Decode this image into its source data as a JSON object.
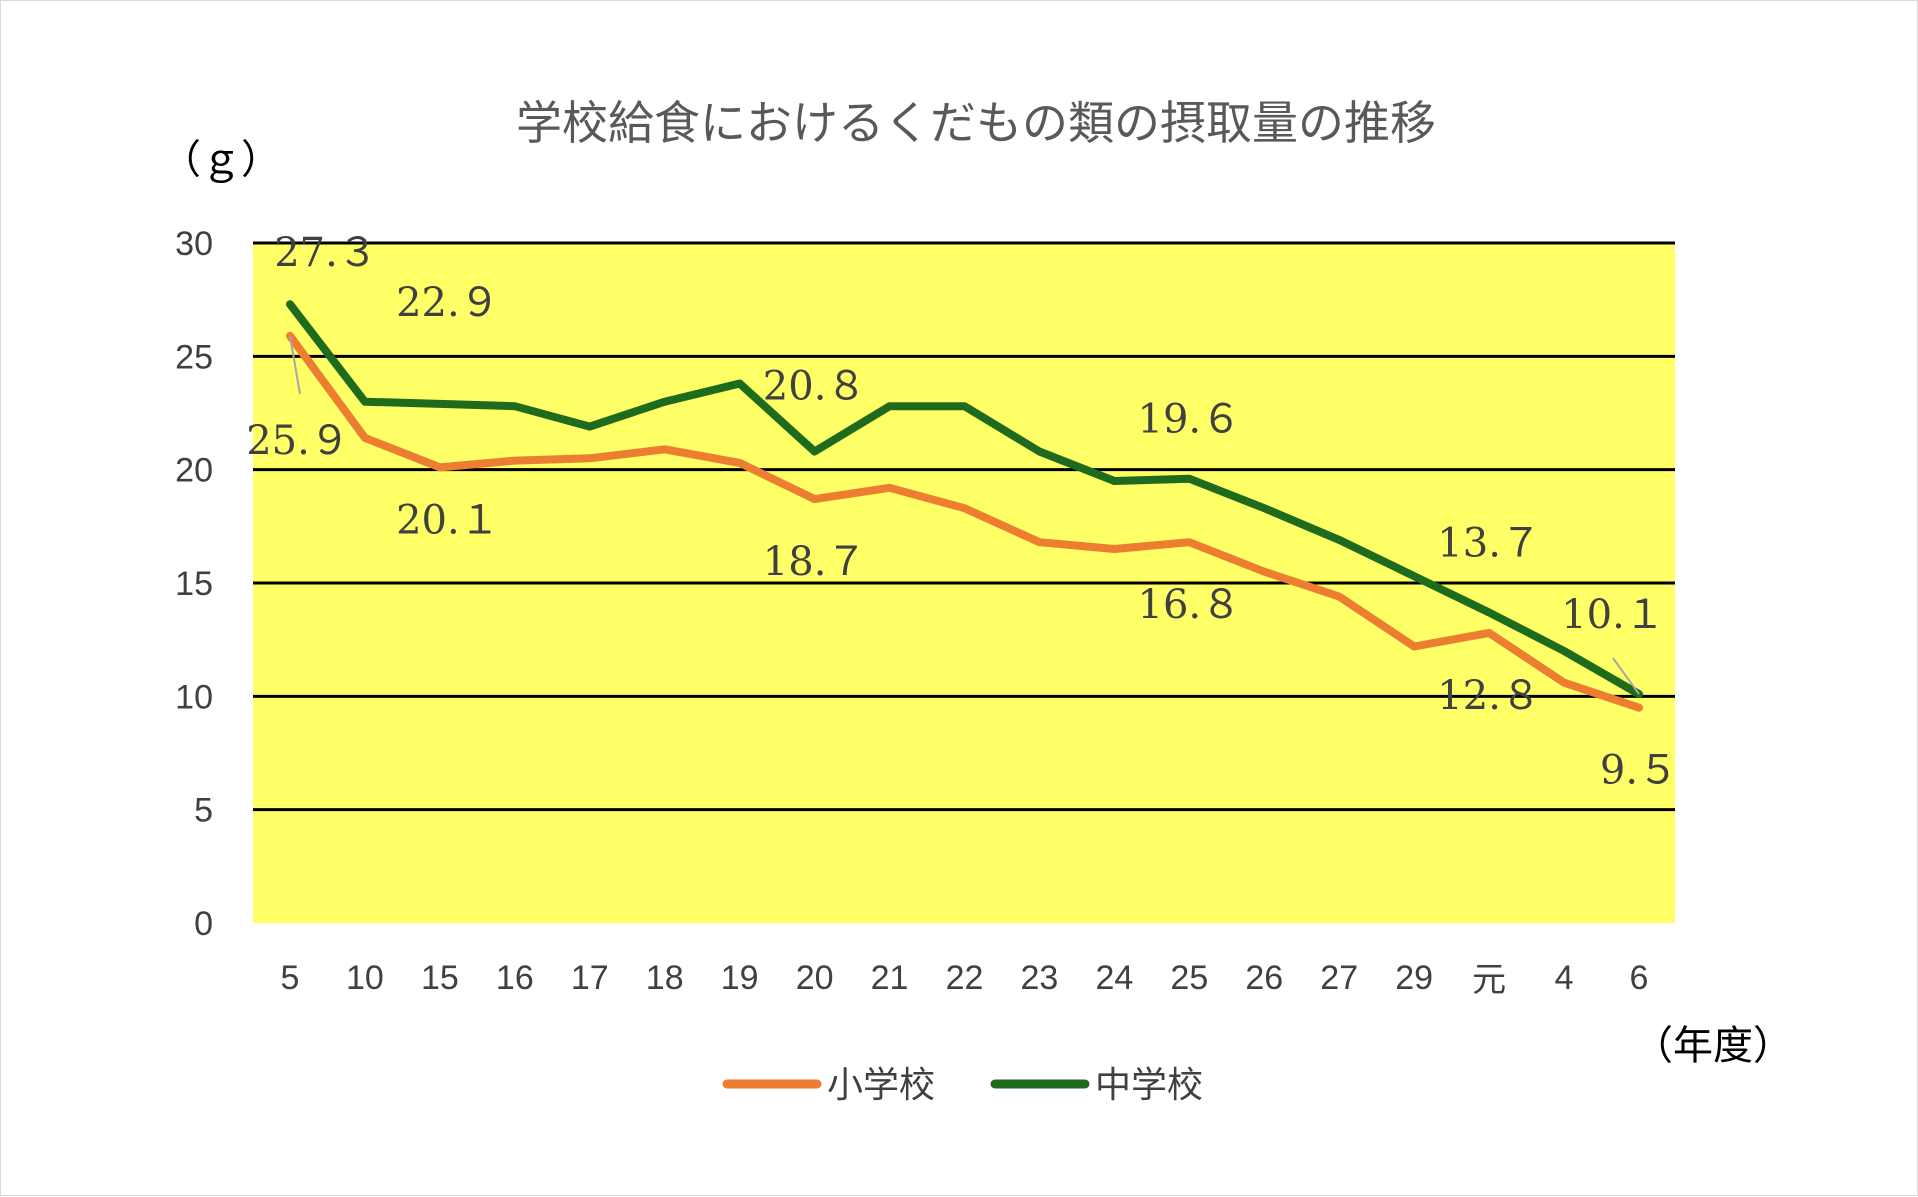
{
  "chart_data": {
    "type": "line",
    "title": "学校給食におけるくだもの類の摂取量の推移",
    "ylabel": "（ｇ）",
    "xlabel": "（年度）",
    "ylim": [
      0,
      30
    ],
    "yticks": [
      0,
      5,
      10,
      15,
      20,
      25,
      30
    ],
    "grid": true,
    "background_color": "#ffff66",
    "categories": [
      "5",
      "10",
      "15",
      "16",
      "17",
      "18",
      "19",
      "20",
      "21",
      "22",
      "23",
      "24",
      "25",
      "26",
      "27",
      "29",
      "元",
      "4",
      "6"
    ],
    "series": [
      {
        "name": "小学校",
        "color": "#ed7d31",
        "values": [
          25.9,
          21.4,
          20.1,
          20.4,
          20.5,
          20.9,
          20.3,
          18.7,
          19.2,
          18.3,
          16.8,
          16.5,
          16.8,
          15.5,
          14.4,
          12.2,
          12.8,
          10.6,
          9.5
        ]
      },
      {
        "name": "中学校",
        "color": "#1e6b1e",
        "values": [
          27.3,
          23.0,
          22.9,
          22.8,
          21.9,
          23.0,
          23.8,
          20.8,
          22.8,
          22.8,
          20.8,
          19.5,
          19.6,
          18.3,
          16.9,
          15.3,
          13.7,
          12.0,
          10.1
        ]
      }
    ],
    "data_labels": [
      {
        "series": "中学校",
        "index": 0,
        "text": "27.３"
      },
      {
        "series": "小学校",
        "index": 0,
        "text": "25.９"
      },
      {
        "series": "中学校",
        "index": 2,
        "text": "22.９"
      },
      {
        "series": "小学校",
        "index": 2,
        "text": "20.１"
      },
      {
        "series": "中学校",
        "index": 7,
        "text": "20.８"
      },
      {
        "series": "小学校",
        "index": 7,
        "text": "18.７"
      },
      {
        "series": "中学校",
        "index": 12,
        "text": "19.６"
      },
      {
        "series": "小学校",
        "index": 12,
        "text": "16.８"
      },
      {
        "series": "中学校",
        "index": 16,
        "text": "13.７"
      },
      {
        "series": "小学校",
        "index": 16,
        "text": "12.８"
      },
      {
        "series": "中学校",
        "index": 18,
        "text": "10.１"
      },
      {
        "series": "小学校",
        "index": 18,
        "text": "9.５"
      }
    ],
    "legend_position": "bottom"
  }
}
